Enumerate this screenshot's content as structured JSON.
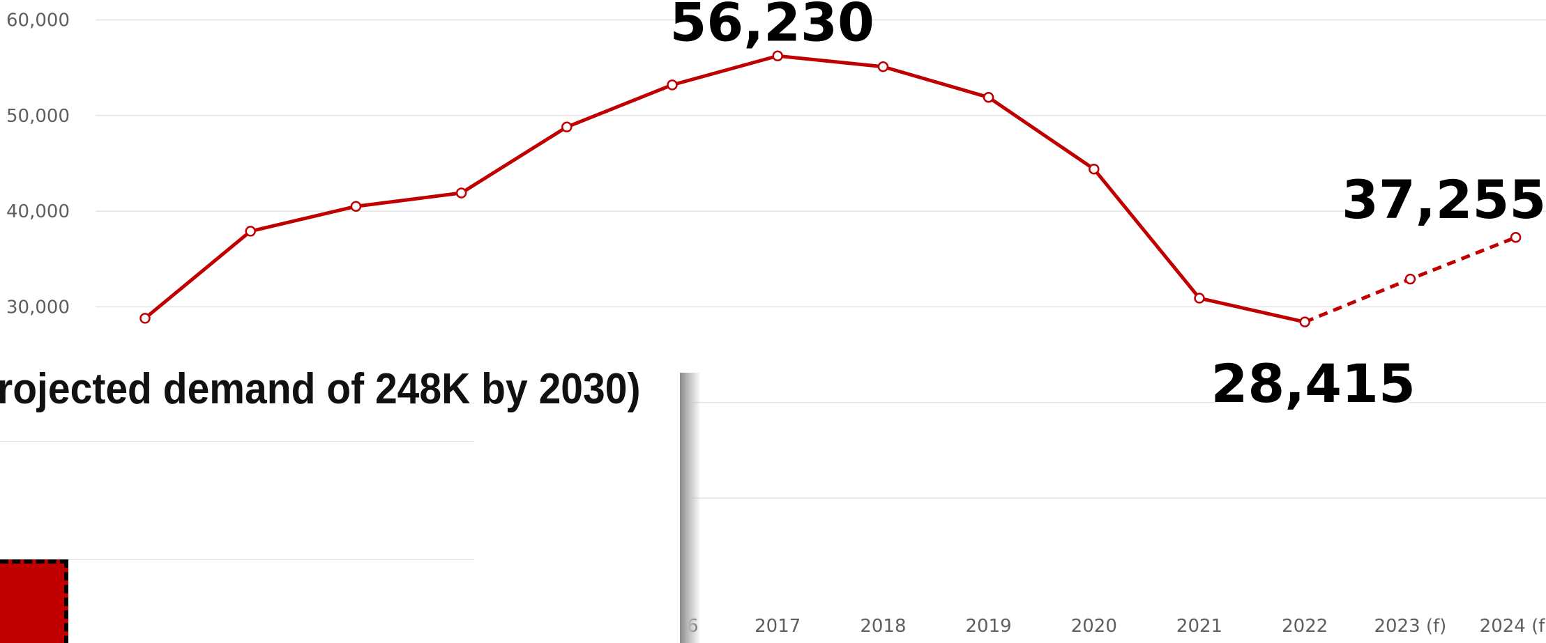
{
  "chart_data": {
    "type": "line",
    "x": [
      "",
      "",
      "",
      "",
      "",
      "",
      "2017",
      "2018",
      "2019",
      "2020",
      "2021",
      "2022",
      "2023 (f)",
      "2024 (f)"
    ],
    "x_tick_labels_visible": [
      "6",
      "2017",
      "2018",
      "2019",
      "2020",
      "2021",
      "2022",
      "2023 (f)",
      "2024 (f)"
    ],
    "values": [
      28800,
      37900,
      40500,
      41900,
      48800,
      53200,
      56230,
      55100,
      51900,
      44400,
      30900,
      28415,
      32900,
      37255
    ],
    "forecast_from_index": 11,
    "y_ticks": [
      "30,000",
      "40,000",
      "50,000",
      "60,000"
    ],
    "y_tick_values": [
      30000,
      40000,
      50000,
      60000
    ],
    "ylim": [
      10000,
      60000
    ],
    "grid": true,
    "colors": {
      "series": "#c00000",
      "grid": "#e3e3e3",
      "tick_text": "#5f5f5f"
    },
    "callouts": [
      {
        "index": 6,
        "label": "56,230"
      },
      {
        "index": 11,
        "label": "28,415"
      },
      {
        "index": 13,
        "label": "37,255"
      }
    ]
  },
  "overlay": {
    "title": "rojected demand of 248K by 2030)",
    "bar_color": "#c00000"
  }
}
